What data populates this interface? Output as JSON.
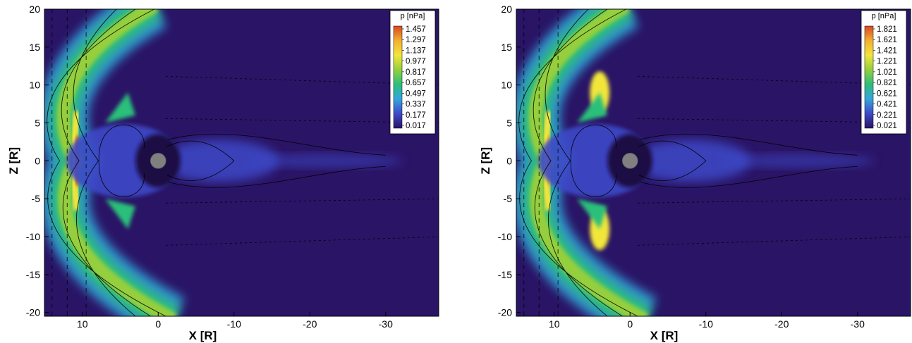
{
  "chart_data": [
    {
      "type": "heatmap",
      "xlabel": "X [R]",
      "ylabel": "Z [R]",
      "xlim": [
        15,
        -37
      ],
      "ylim": [
        -20.5,
        20
      ],
      "x_ticks": [
        10,
        0,
        -10,
        -20,
        -30
      ],
      "y_ticks": [
        20,
        15,
        10,
        5,
        0,
        -5,
        -10,
        -15,
        -20
      ],
      "colorbar": {
        "title": "p [nPa]",
        "levels": [
          1.457,
          1.297,
          1.137,
          0.977,
          0.817,
          0.657,
          0.497,
          0.337,
          0.177,
          0.017
        ]
      },
      "bow_shock_nose_x": 11,
      "magnetopause_nose_x": 8,
      "peak_pressure": 1.457
    },
    {
      "type": "heatmap",
      "xlabel": "X [R]",
      "ylabel": "Z [R]",
      "xlim": [
        15,
        -37
      ],
      "ylim": [
        -20.5,
        20
      ],
      "x_ticks": [
        10,
        0,
        -10,
        -20,
        -30
      ],
      "y_ticks": [
        20,
        15,
        10,
        5,
        0,
        -5,
        -10,
        -15,
        -20
      ],
      "colorbar": {
        "title": "p [nPa]",
        "levels": [
          1.821,
          1.621,
          1.421,
          1.221,
          1.021,
          0.821,
          0.621,
          0.421,
          0.221,
          0.021
        ]
      },
      "bow_shock_nose_x": 11,
      "magnetopause_nose_x": 8,
      "peak_pressure": 1.821
    }
  ],
  "colors": {
    "scale": [
      "#2a1466",
      "#3d4ac8",
      "#33a6dd",
      "#2bbf7a",
      "#95cf3c",
      "#f2e63a",
      "#f3b030",
      "#d94722"
    ],
    "background": "#2a1466",
    "planet": "#808080"
  }
}
